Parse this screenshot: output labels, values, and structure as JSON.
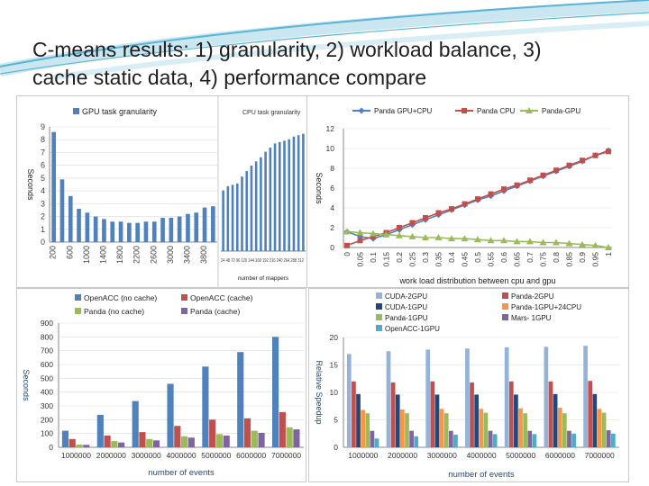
{
  "slide": {
    "title_line1": "C-means results: 1) granularity, 2) workload balance, 3)",
    "title_line2": "cache static data, 4) performance compare"
  },
  "colors": {
    "title_text": "#1f1f1f",
    "accent_swoosh": "#5bb4d6",
    "axis_label": "#1f497d"
  },
  "chart_data": [
    {
      "type": "bar",
      "title": "GPU task granularity",
      "legend": "GPU task granularity",
      "ylabel": "Seconds",
      "ylim": [
        0,
        9
      ],
      "yticks": [
        0,
        1,
        2,
        3,
        4,
        5,
        6,
        7,
        8,
        9
      ],
      "categories": [
        "200",
        "400",
        "600",
        "800",
        "1000",
        "1200",
        "1400",
        "1600",
        "1800",
        "2000",
        "2200",
        "2400",
        "2600",
        "2800",
        "3000",
        "3200",
        "3400",
        "3600",
        "3800",
        "4000"
      ],
      "tick_labels": [
        "200",
        "600",
        "1000",
        "1400",
        "1800",
        "2200",
        "2600",
        "3000",
        "3400",
        "3800"
      ],
      "values": [
        8.6,
        4.9,
        3.6,
        2.6,
        2.3,
        2.0,
        1.8,
        1.6,
        1.6,
        1.5,
        1.5,
        1.6,
        1.6,
        1.9,
        1.9,
        2.0,
        2.2,
        2.3,
        2.7,
        2.8
      ],
      "color": "#4f81bd"
    },
    {
      "type": "bar",
      "legend": "CPU task granularity",
      "xlabel": "number of mappers",
      "ylim": [
        0,
        9
      ],
      "tick_text": "24 48 72 96 120 144 168 192 216 240 264 288 312",
      "values": [
        4.4,
        4.7,
        4.8,
        4.9,
        5.4,
        5.8,
        6.2,
        6.5,
        6.8,
        7.2,
        7.5,
        7.8,
        7.9,
        8.0,
        8.1,
        8.3,
        8.4,
        8.5
      ],
      "color": "#4f81bd"
    },
    {
      "type": "line",
      "ylabel": "Seconds",
      "xlabel": "work load distribution between cpu and gpu",
      "ylim": [
        0,
        12
      ],
      "yticks": [
        0,
        2,
        4,
        6,
        8,
        10,
        12
      ],
      "x": [
        "0",
        "0.05",
        "0.1",
        "0.15",
        "0.2",
        "0.25",
        "0.3",
        "0.35",
        "0.4",
        "0.45",
        "0.5",
        "0.55",
        "0.6",
        "0.65",
        "0.7",
        "0.75",
        "0.8",
        "0.85",
        "0.9",
        "0.95",
        "1"
      ],
      "series": [
        {
          "name": "Panda GPU+CPU",
          "color": "#4f81bd",
          "marker": "diamond",
          "values": [
            1.6,
            1.1,
            0.9,
            1.3,
            1.8,
            2.3,
            2.8,
            3.3,
            3.8,
            4.3,
            4.8,
            5.2,
            5.7,
            6.2,
            6.7,
            7.2,
            7.7,
            8.2,
            8.7,
            9.3,
            9.8
          ]
        },
        {
          "name": "Panda CPU",
          "color": "#c0504d",
          "marker": "square",
          "values": [
            0.2,
            0.7,
            1.1,
            1.5,
            2.0,
            2.5,
            3.0,
            3.5,
            3.9,
            4.4,
            4.9,
            5.4,
            5.9,
            6.3,
            6.8,
            7.3,
            7.8,
            8.3,
            8.8,
            9.3,
            9.7
          ]
        },
        {
          "name": "Panda-GPU",
          "color": "#9bbb59",
          "marker": "triangle",
          "values": [
            1.6,
            1.5,
            1.4,
            1.3,
            1.2,
            1.1,
            1.0,
            1.0,
            0.9,
            0.9,
            0.8,
            0.7,
            0.7,
            0.6,
            0.6,
            0.5,
            0.5,
            0.4,
            0.3,
            0.2,
            0.0
          ]
        }
      ]
    },
    {
      "type": "bar",
      "ylabel": "Seconds",
      "xlabel": "number of events",
      "ylim": [
        0,
        900
      ],
      "yticks": [
        0,
        100,
        200,
        300,
        400,
        500,
        600,
        700,
        800,
        900
      ],
      "categories": [
        "1000000",
        "2000000",
        "3000000",
        "4000000",
        "5000000",
        "6000000",
        "7000000"
      ],
      "series": [
        {
          "name": "OpenACC (no cache)",
          "color": "#4f81bd",
          "values": [
            120,
            235,
            335,
            460,
            585,
            690,
            800
          ]
        },
        {
          "name": "OpenACC (cache)",
          "color": "#c0504d",
          "values": [
            60,
            85,
            110,
            155,
            200,
            210,
            255
          ]
        },
        {
          "name": "Panda (no cache)",
          "color": "#9bbb59",
          "values": [
            20,
            45,
            60,
            80,
            95,
            120,
            145
          ]
        },
        {
          "name": "Panda (cache)",
          "color": "#8064a2",
          "values": [
            18,
            35,
            50,
            70,
            85,
            105,
            130
          ]
        }
      ]
    },
    {
      "type": "bar",
      "ylabel": "Relative Speedup",
      "xlabel": "number of events",
      "ylim": [
        0,
        20
      ],
      "yticks": [
        0,
        5,
        10,
        15,
        20
      ],
      "categories": [
        "1000000",
        "2000000",
        "3000000",
        "4000000",
        "5000000",
        "6000000",
        "7000000"
      ],
      "series": [
        {
          "name": "CUDA-2GPU",
          "color": "#95b3d7",
          "values": [
            17.0,
            17.5,
            17.8,
            18.0,
            18.2,
            18.3,
            18.5
          ]
        },
        {
          "name": "Panda-2GPU",
          "color": "#c0504d",
          "values": [
            12.0,
            11.8,
            12.0,
            11.8,
            12.0,
            12.0,
            12.1
          ]
        },
        {
          "name": "CUDA-1GPU",
          "color": "#1f497d",
          "values": [
            9.7,
            9.6,
            9.6,
            9.6,
            9.6,
            9.7,
            9.7
          ]
        },
        {
          "name": "Panda-1GPU+24CPU",
          "color": "#f79646",
          "values": [
            6.8,
            6.9,
            7.0,
            7.0,
            7.1,
            7.2,
            7.0
          ]
        },
        {
          "name": "Panda-1GPU",
          "color": "#9bbb59",
          "values": [
            6.2,
            6.2,
            6.2,
            6.3,
            6.2,
            6.2,
            6.3
          ]
        },
        {
          "name": "Mars- 1GPU",
          "color": "#8064a2",
          "values": [
            3.0,
            3.0,
            3.0,
            3.0,
            3.0,
            3.0,
            3.1
          ]
        },
        {
          "name": "OpenACC-1GPU",
          "color": "#4bacc6",
          "values": [
            1.6,
            2.0,
            2.3,
            2.4,
            2.4,
            2.5,
            2.5
          ]
        }
      ]
    }
  ]
}
